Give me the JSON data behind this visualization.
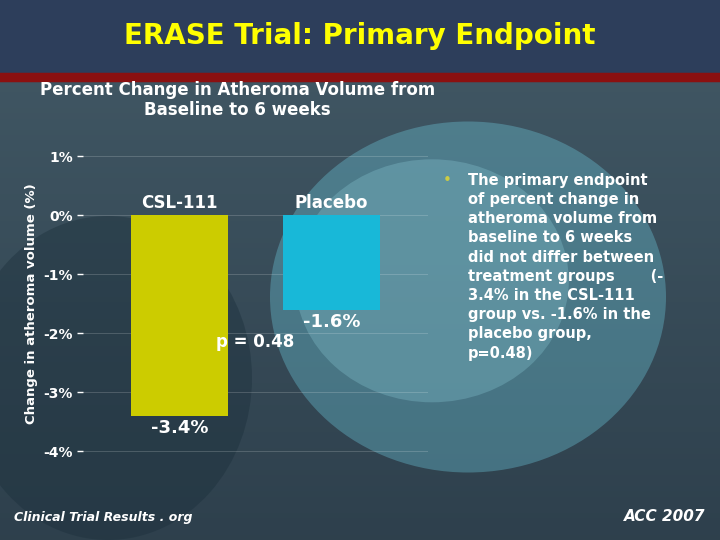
{
  "title": "ERASE Trial: Primary Endpoint",
  "subtitle_line1": "Percent Change in Atheroma Volume from",
  "subtitle_line2": "Baseline to 6 weeks",
  "ylabel": "Change in atheroma volume (%)",
  "categories": [
    "CSL-111",
    "Placebo"
  ],
  "values": [
    -3.4,
    -1.6
  ],
  "bar_colors": [
    "#cccc00",
    "#18b8d8"
  ],
  "bar_labels": [
    "-3.4%",
    "-1.6%"
  ],
  "p_value_text": "p = 0.48",
  "ylim": [
    -4.5,
    1.5
  ],
  "yticks": [
    1,
    0,
    -1,
    -2,
    -3,
    -4
  ],
  "ytick_labels": [
    "1%",
    "0%",
    "-1%",
    "-2%",
    "-3%",
    "-4%"
  ],
  "title_color": "#ffff00",
  "subtitle_color": "#ffffff",
  "bar_label_color": "#ffffff",
  "ylabel_color": "#ffffff",
  "ytick_color": "#ffffff",
  "pvalue_color": "#ffffff",
  "bar_name_color": "#ffffff",
  "footer_left": "Clinical Trial Results . org",
  "footer_right": "ACC 2007",
  "footer_color": "#ffffff",
  "bullet_color": "#cccc44",
  "annotation_line1": "The primary endpoint",
  "annotation_line2": "of percent change in",
  "annotation_line3": "atheroma volume from",
  "annotation_line4": "baseline to 6 weeks",
  "annotation_line5": "did not differ between",
  "annotation_line6": "treatment groups       (-",
  "annotation_line7": "3.4% in the CSL-111",
  "annotation_line8": "group vs. -1.6% in the",
  "annotation_line9": "placebo group,",
  "annotation_line10": "p=0.48)",
  "annotation_color": "#ffffff",
  "title_fontsize": 20,
  "subtitle_fontsize": 12,
  "bar_label_fontsize": 13,
  "bar_name_fontsize": 12,
  "annotation_fontsize": 10.5
}
